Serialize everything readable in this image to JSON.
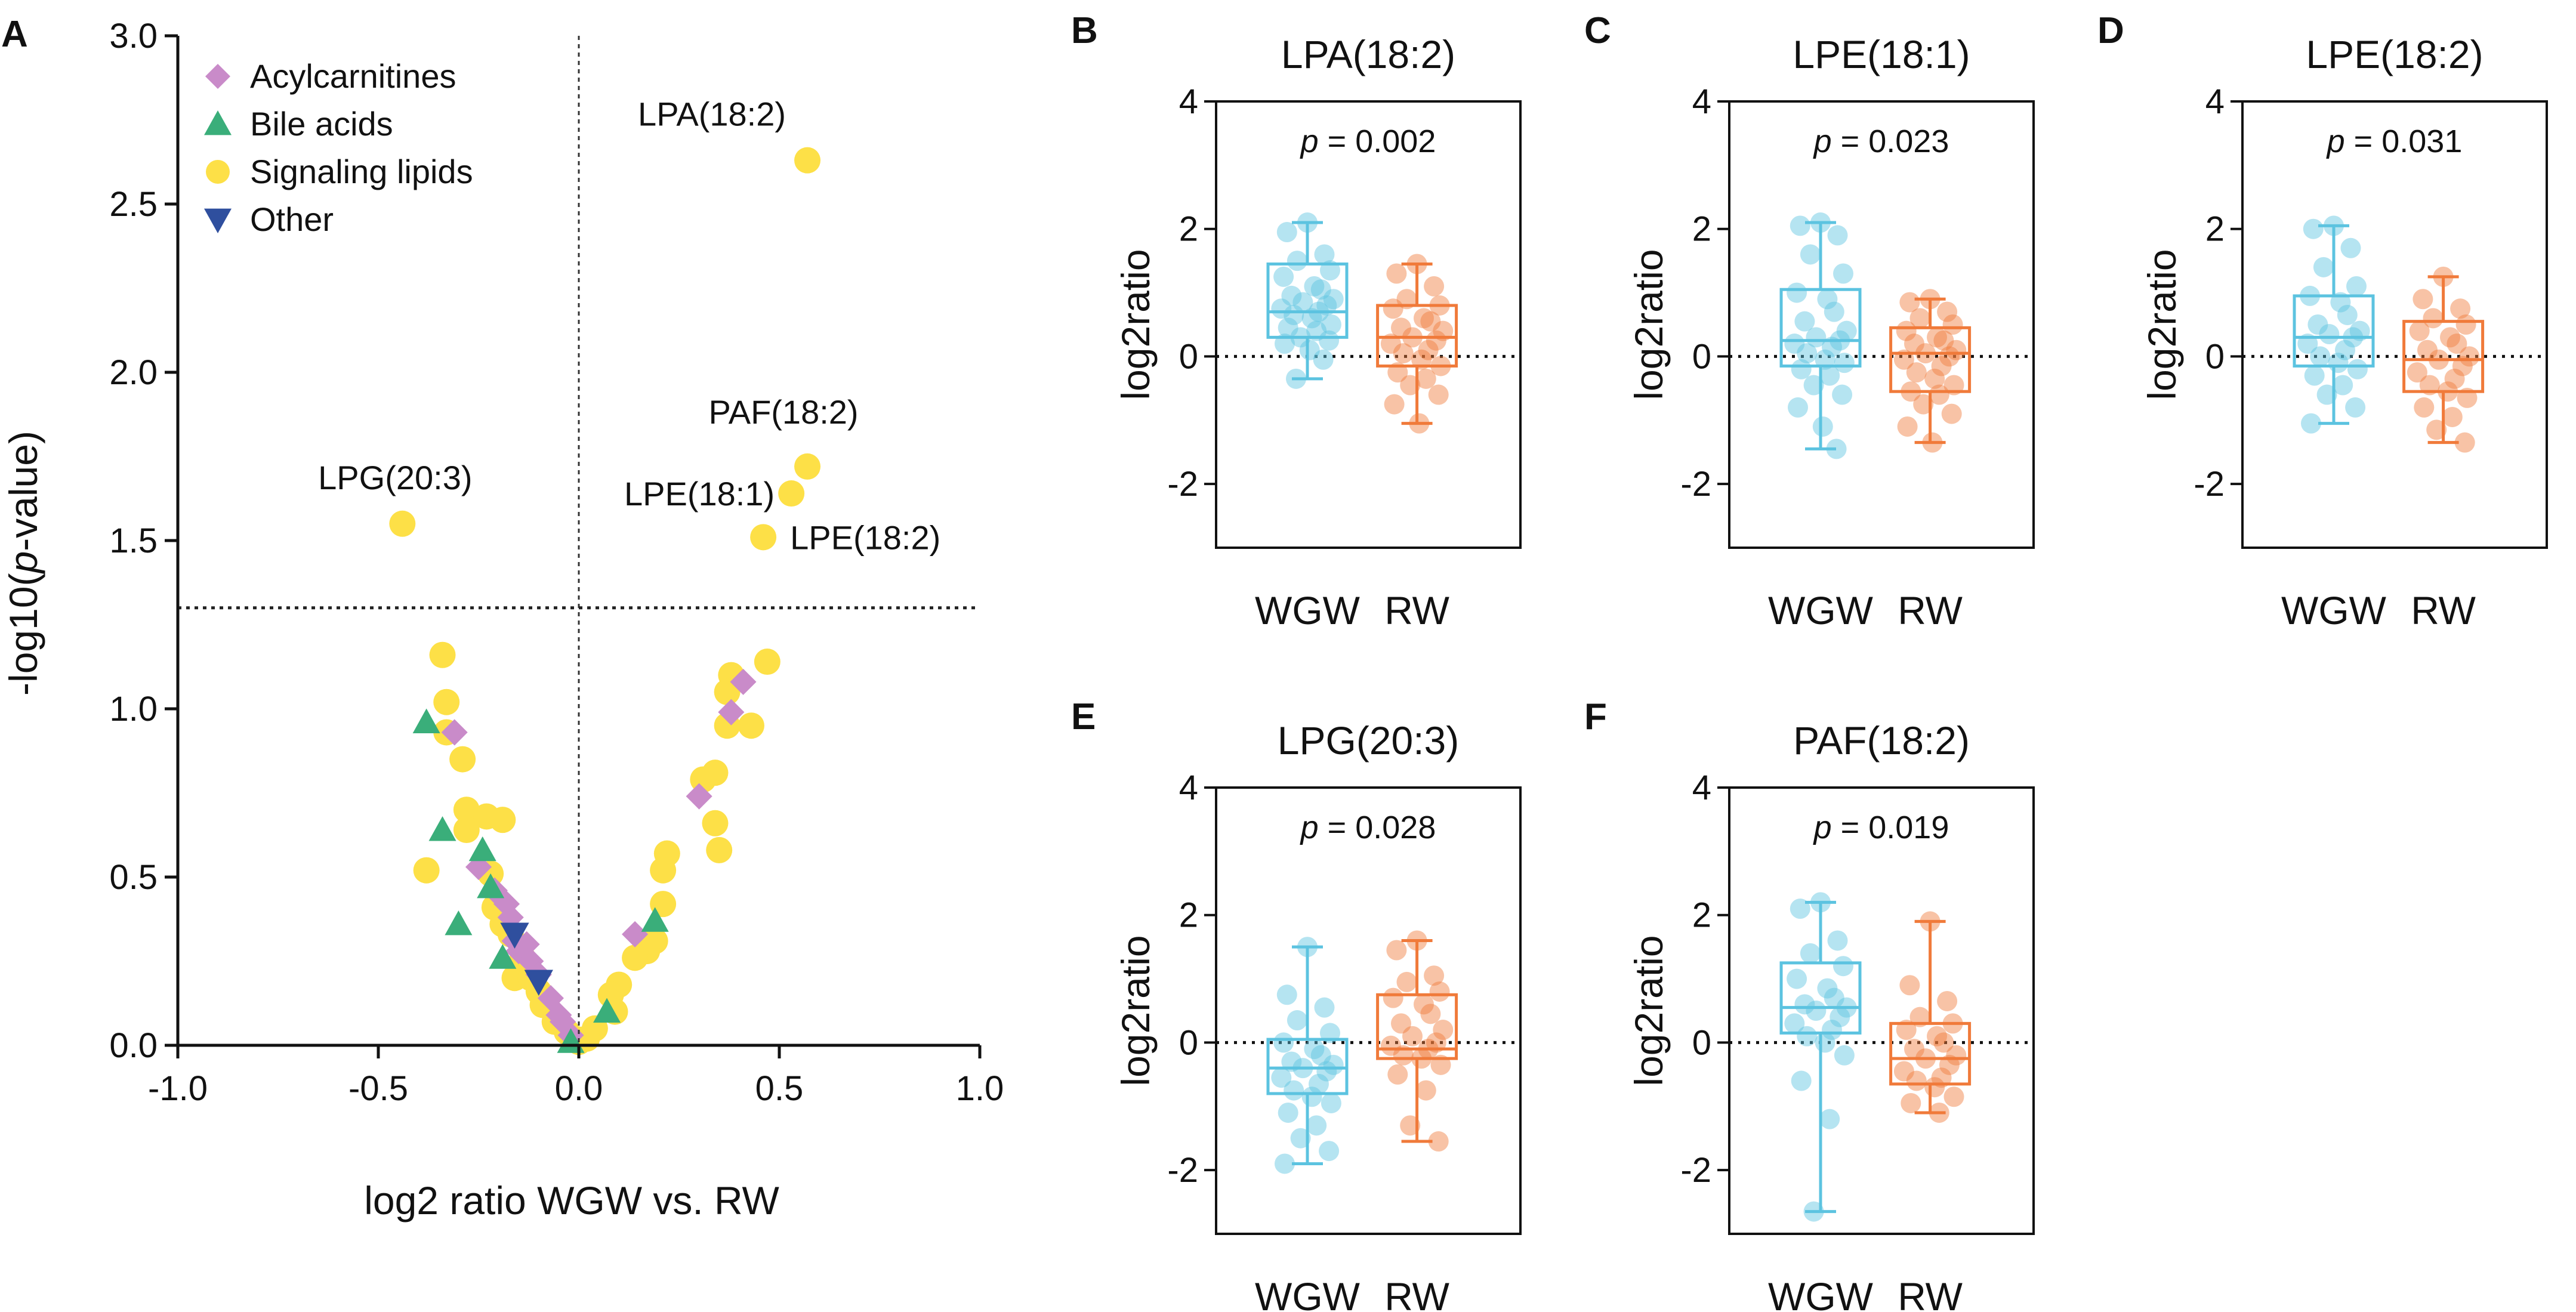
{
  "figure_labels": [
    "A",
    "B",
    "C",
    "D",
    "E",
    "F"
  ],
  "colors": {
    "acylcarnitines": "#c98bc9",
    "bile_acids": "#3aae7a",
    "signaling_lipids": "#fde047",
    "other": "#2f4f9e",
    "wgw": "#5cc3e0",
    "rw": "#f07a3a",
    "axis": "#111111"
  },
  "chart_data": [
    {
      "id": "A",
      "type": "scatter",
      "title": "",
      "xlabel": "log2 ratio WGW vs. RW",
      "ylabel": "-log10(p-value)",
      "ylabel_parts": [
        "-log10(",
        "p",
        "-value)"
      ],
      "xlim": [
        -1.0,
        1.0
      ],
      "ylim": [
        0.0,
        3.0
      ],
      "xticks": [
        -1.0,
        -0.5,
        0.0,
        0.5,
        1.0
      ],
      "xtick_labels": [
        "-1.0",
        "-0.5",
        "0.0",
        "0.5",
        "1.0"
      ],
      "yticks": [
        0.0,
        0.5,
        1.0,
        1.5,
        2.0,
        2.5,
        3.0
      ],
      "ytick_labels": [
        "0.0",
        "0.5",
        "1.0",
        "1.5",
        "2.0",
        "2.5",
        "3.0"
      ],
      "significance_line_y": 1.3,
      "legend": [
        {
          "label": "Acylcarnitines",
          "marker": "diamond",
          "color_key": "acylcarnitines"
        },
        {
          "label": "Bile acids",
          "marker": "triangle-up",
          "color_key": "bile_acids"
        },
        {
          "label": "Signaling lipids",
          "marker": "circle",
          "color_key": "signaling_lipids"
        },
        {
          "label": "Other",
          "marker": "triangle-down",
          "color_key": "other"
        }
      ],
      "legend_position": "top-left",
      "annotations": [
        {
          "text": "LPA(18:2)",
          "x": 0.57,
          "y": 2.63
        },
        {
          "text": "PAF(18:2)",
          "x": 0.57,
          "y": 1.72
        },
        {
          "text": "LPE(18:1)",
          "x": 0.53,
          "y": 1.64
        },
        {
          "text": "LPE(18:2)",
          "x": 0.46,
          "y": 1.51
        },
        {
          "text": "LPG(20:3)",
          "x": -0.44,
          "y": 1.55
        }
      ],
      "series": [
        {
          "name": "Signaling lipids",
          "points": [
            [
              0.57,
              2.63
            ],
            [
              0.57,
              1.72
            ],
            [
              0.53,
              1.64
            ],
            [
              0.46,
              1.51
            ],
            [
              -0.44,
              1.55
            ],
            [
              0.47,
              1.14
            ],
            [
              0.38,
              1.1
            ],
            [
              0.37,
              1.05
            ],
            [
              0.43,
              0.95
            ],
            [
              0.37,
              0.95
            ],
            [
              0.34,
              0.81
            ],
            [
              0.31,
              0.79
            ],
            [
              0.34,
              0.66
            ],
            [
              0.22,
              0.57
            ],
            [
              0.21,
              0.52
            ],
            [
              0.35,
              0.58
            ],
            [
              0.21,
              0.42
            ],
            [
              0.19,
              0.31
            ],
            [
              0.17,
              0.28
            ],
            [
              0.14,
              0.26
            ],
            [
              0.1,
              0.18
            ],
            [
              0.08,
              0.15
            ],
            [
              0.09,
              0.1
            ],
            [
              0.04,
              0.05
            ],
            [
              0.02,
              0.02
            ],
            [
              -0.34,
              1.16
            ],
            [
              -0.33,
              1.02
            ],
            [
              -0.33,
              0.93
            ],
            [
              -0.29,
              0.85
            ],
            [
              -0.28,
              0.7
            ],
            [
              -0.28,
              0.64
            ],
            [
              -0.23,
              0.68
            ],
            [
              -0.19,
              0.67
            ],
            [
              -0.38,
              0.52
            ],
            [
              -0.22,
              0.51
            ],
            [
              -0.21,
              0.41
            ],
            [
              -0.19,
              0.36
            ],
            [
              -0.17,
              0.33
            ],
            [
              -0.14,
              0.26
            ],
            [
              -0.16,
              0.2
            ],
            [
              -0.12,
              0.2
            ],
            [
              -0.1,
              0.16
            ],
            [
              -0.09,
              0.12
            ],
            [
              -0.06,
              0.07
            ],
            [
              -0.03,
              0.04
            ],
            [
              -0.01,
              0.02
            ],
            [
              0.0,
              0.01
            ]
          ]
        },
        {
          "name": "Acylcarnitines",
          "points": [
            [
              0.41,
              1.08
            ],
            [
              0.38,
              0.99
            ],
            [
              0.3,
              0.74
            ],
            [
              0.14,
              0.33
            ],
            [
              -0.31,
              0.93
            ],
            [
              -0.25,
              0.53
            ],
            [
              -0.21,
              0.46
            ],
            [
              -0.18,
              0.42
            ],
            [
              -0.17,
              0.38
            ],
            [
              -0.16,
              0.31
            ],
            [
              -0.15,
              0.28
            ],
            [
              -0.13,
              0.3
            ],
            [
              -0.12,
              0.25
            ],
            [
              -0.1,
              0.21
            ],
            [
              -0.07,
              0.14
            ],
            [
              -0.05,
              0.09
            ],
            [
              -0.04,
              0.07
            ],
            [
              -0.02,
              0.03
            ]
          ]
        },
        {
          "name": "Bile acids",
          "points": [
            [
              -0.38,
              0.96
            ],
            [
              -0.34,
              0.64
            ],
            [
              -0.24,
              0.58
            ],
            [
              -0.22,
              0.47
            ],
            [
              -0.3,
              0.36
            ],
            [
              -0.19,
              0.26
            ],
            [
              -0.02,
              0.01
            ],
            [
              0.07,
              0.1
            ],
            [
              0.19,
              0.37
            ]
          ]
        },
        {
          "name": "Other",
          "points": [
            [
              -0.16,
              0.33
            ],
            [
              -0.1,
              0.19
            ]
          ]
        }
      ]
    },
    {
      "id": "B",
      "type": "box",
      "title": "LPA(18:2)",
      "ylabel": "log2ratio",
      "p_prefix": "p",
      "p_value": "= 0.002",
      "ylim": [
        -3,
        4
      ],
      "yticks": [
        -2,
        0,
        2,
        4
      ],
      "ytick_labels": [
        "-2",
        "0",
        "2",
        "4"
      ],
      "categories": [
        "WGW",
        "RW"
      ],
      "boxes": [
        {
          "group": "WGW",
          "min": -0.35,
          "q1": 0.3,
          "median": 0.7,
          "q3": 1.45,
          "max": 2.1,
          "points": [
            2.1,
            1.95,
            1.6,
            1.5,
            1.35,
            1.25,
            1.1,
            1.05,
            0.95,
            0.9,
            0.85,
            0.8,
            0.75,
            0.7,
            0.65,
            0.6,
            0.5,
            0.45,
            0.4,
            0.3,
            0.25,
            0.2,
            0.1,
            -0.05,
            -0.35
          ]
        },
        {
          "group": "RW",
          "min": -1.05,
          "q1": -0.15,
          "median": 0.3,
          "q3": 0.8,
          "max": 1.45,
          "points": [
            1.45,
            1.3,
            1.1,
            0.9,
            0.8,
            0.75,
            0.6,
            0.55,
            0.45,
            0.4,
            0.3,
            0.25,
            0.2,
            0.1,
            0.05,
            -0.05,
            -0.15,
            -0.25,
            -0.35,
            -0.45,
            -0.6,
            -0.75,
            -1.05
          ]
        }
      ]
    },
    {
      "id": "C",
      "type": "box",
      "title": "LPE(18:1)",
      "ylabel": "log2ratio",
      "p_prefix": "p",
      "p_value": "= 0.023",
      "ylim": [
        -3,
        4
      ],
      "yticks": [
        -2,
        0,
        2,
        4
      ],
      "ytick_labels": [
        "-2",
        "0",
        "2",
        "4"
      ],
      "categories": [
        "WGW",
        "RW"
      ],
      "boxes": [
        {
          "group": "WGW",
          "min": -1.45,
          "q1": -0.15,
          "median": 0.25,
          "q3": 1.05,
          "max": 2.1,
          "points": [
            2.1,
            2.05,
            1.9,
            1.6,
            1.3,
            1.0,
            0.9,
            0.7,
            0.55,
            0.4,
            0.3,
            0.25,
            0.2,
            0.15,
            0.05,
            -0.05,
            -0.1,
            -0.2,
            -0.3,
            -0.45,
            -0.6,
            -0.8,
            -1.1,
            -1.45
          ]
        },
        {
          "group": "RW",
          "min": -1.35,
          "q1": -0.55,
          "median": 0.05,
          "q3": 0.45,
          "max": 0.9,
          "points": [
            0.9,
            0.85,
            0.7,
            0.6,
            0.5,
            0.4,
            0.3,
            0.25,
            0.2,
            0.1,
            0.05,
            0.0,
            -0.05,
            -0.15,
            -0.25,
            -0.35,
            -0.45,
            -0.55,
            -0.6,
            -0.75,
            -0.9,
            -1.1,
            -1.35
          ]
        }
      ]
    },
    {
      "id": "D",
      "type": "box",
      "title": "LPE(18:2)",
      "ylabel": "log2ratio",
      "p_prefix": "p",
      "p_value": "= 0.031",
      "ylim": [
        -3,
        4
      ],
      "yticks": [
        -2,
        0,
        2,
        4
      ],
      "ytick_labels": [
        "-2",
        "0",
        "2",
        "4"
      ],
      "categories": [
        "WGW",
        "RW"
      ],
      "boxes": [
        {
          "group": "WGW",
          "min": -1.05,
          "q1": -0.15,
          "median": 0.3,
          "q3": 0.95,
          "max": 2.05,
          "points": [
            2.05,
            2.0,
            1.7,
            1.4,
            1.1,
            0.95,
            0.85,
            0.65,
            0.5,
            0.4,
            0.35,
            0.3,
            0.2,
            0.1,
            0.0,
            -0.1,
            -0.2,
            -0.3,
            -0.45,
            -0.6,
            -0.8,
            -1.05
          ]
        },
        {
          "group": "RW",
          "min": -1.35,
          "q1": -0.55,
          "median": -0.05,
          "q3": 0.55,
          "max": 1.25,
          "points": [
            1.25,
            0.9,
            0.75,
            0.6,
            0.5,
            0.4,
            0.3,
            0.2,
            0.1,
            0.0,
            -0.05,
            -0.15,
            -0.25,
            -0.35,
            -0.45,
            -0.55,
            -0.65,
            -0.8,
            -0.95,
            -1.15,
            -1.35
          ]
        }
      ]
    },
    {
      "id": "E",
      "type": "box",
      "title": "LPG(20:3)",
      "ylabel": "log2ratio",
      "p_prefix": "p",
      "p_value": "= 0.028",
      "ylim": [
        -3,
        4
      ],
      "yticks": [
        -2,
        0,
        2,
        4
      ],
      "ytick_labels": [
        "-2",
        "0",
        "2",
        "4"
      ],
      "categories": [
        "WGW",
        "RW"
      ],
      "boxes": [
        {
          "group": "WGW",
          "min": -1.9,
          "q1": -0.8,
          "median": -0.4,
          "q3": 0.05,
          "max": 1.5,
          "points": [
            1.5,
            0.75,
            0.55,
            0.35,
            0.15,
            0.0,
            -0.1,
            -0.2,
            -0.3,
            -0.35,
            -0.4,
            -0.45,
            -0.55,
            -0.65,
            -0.75,
            -0.85,
            -0.95,
            -1.1,
            -1.3,
            -1.5,
            -1.7,
            -1.9
          ]
        },
        {
          "group": "RW",
          "min": -1.55,
          "q1": -0.25,
          "median": -0.1,
          "q3": 0.75,
          "max": 1.6,
          "points": [
            1.6,
            1.45,
            1.05,
            0.95,
            0.8,
            0.7,
            0.6,
            0.45,
            0.3,
            0.2,
            0.1,
            0.0,
            -0.05,
            -0.1,
            -0.2,
            -0.25,
            -0.35,
            -0.5,
            -0.75,
            -1.3,
            -1.55
          ]
        }
      ]
    },
    {
      "id": "F",
      "type": "box",
      "title": "PAF(18:2)",
      "ylabel": "log2ratio",
      "p_prefix": "p",
      "p_value": "= 0.019",
      "ylim": [
        -3,
        4
      ],
      "yticks": [
        -2,
        0,
        2,
        4
      ],
      "ytick_labels": [
        "-2",
        "0",
        "2",
        "4"
      ],
      "categories": [
        "WGW",
        "RW"
      ],
      "boxes": [
        {
          "group": "WGW",
          "min": -2.65,
          "q1": 0.15,
          "median": 0.55,
          "q3": 1.25,
          "max": 2.2,
          "points": [
            2.2,
            2.1,
            1.6,
            1.4,
            1.2,
            1.0,
            0.85,
            0.7,
            0.6,
            0.55,
            0.5,
            0.4,
            0.3,
            0.2,
            0.1,
            0.0,
            -0.2,
            -0.6,
            -1.2,
            -2.65
          ]
        },
        {
          "group": "RW",
          "min": -1.1,
          "q1": -0.65,
          "median": -0.25,
          "q3": 0.3,
          "max": 1.9,
          "points": [
            1.9,
            0.9,
            0.65,
            0.4,
            0.3,
            0.2,
            0.1,
            0.0,
            -0.1,
            -0.2,
            -0.25,
            -0.35,
            -0.45,
            -0.55,
            -0.6,
            -0.7,
            -0.85,
            -0.95,
            -1.1
          ]
        }
      ]
    }
  ]
}
